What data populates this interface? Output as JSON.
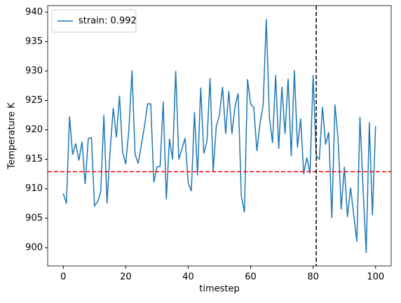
{
  "chart_data": {
    "type": "line",
    "xlabel": "timestep",
    "ylabel": "Temperature K",
    "x": [
      0,
      1,
      2,
      3,
      4,
      5,
      6,
      7,
      8,
      9,
      10,
      11,
      12,
      13,
      14,
      15,
      16,
      17,
      18,
      19,
      20,
      21,
      22,
      23,
      24,
      25,
      26,
      27,
      28,
      29,
      30,
      31,
      32,
      33,
      34,
      35,
      36,
      37,
      38,
      39,
      40,
      41,
      42,
      43,
      44,
      45,
      46,
      47,
      48,
      49,
      50,
      51,
      52,
      53,
      54,
      55,
      56,
      57,
      58,
      59,
      60,
      61,
      62,
      63,
      64,
      65,
      66,
      67,
      68,
      69,
      70,
      71,
      72,
      73,
      74,
      75,
      76,
      77,
      78,
      79,
      80,
      81,
      82,
      83,
      84,
      85,
      86,
      87,
      88,
      89,
      90,
      91,
      92,
      93,
      94,
      95,
      96,
      97,
      98,
      99,
      100
    ],
    "series": [
      {
        "name": "strain: 0.992",
        "color": "#1f77b4",
        "values": [
          909.2,
          907.5,
          922.3,
          915.8,
          917.7,
          914.8,
          918.0,
          910.8,
          918.5,
          918.7,
          907.1,
          907.8,
          909.5,
          922.5,
          907.5,
          916.5,
          923.7,
          918.7,
          925.8,
          916.2,
          914.2,
          920.0,
          930.1,
          915.8,
          914.3,
          917.5,
          920.6,
          924.4,
          924.4,
          911.1,
          913.7,
          913.8,
          924.8,
          908.2,
          918.5,
          915.0,
          930.0,
          915.0,
          916.8,
          918.6,
          911.0,
          909.6,
          923.0,
          912.3,
          927.2,
          916.0,
          918.0,
          928.8,
          913.0,
          920.6,
          922.5,
          927.3,
          919.3,
          926.6,
          919.3,
          924.0,
          926.2,
          908.8,
          906.0,
          928.6,
          924.4,
          923.8,
          916.4,
          921.2,
          924.2,
          938.8,
          922.2,
          917.8,
          929.3,
          916.8,
          927.3,
          919.3,
          928.7,
          915.5,
          930.1,
          917.0,
          921.9,
          912.5,
          915.3,
          912.6,
          929.3,
          915.6,
          915.0,
          923.9,
          917.5,
          919.6,
          905.0,
          924.3,
          918.4,
          906.5,
          913.7,
          905.2,
          910.2,
          905.6,
          901.0,
          922.2,
          909.9,
          899.1,
          921.3,
          905.5,
          920.6
        ]
      }
    ],
    "reference_lines": [
      {
        "axis": "y",
        "value": 912.9,
        "color": "#ff0000"
      },
      {
        "axis": "x",
        "value": 81,
        "color": "#000000"
      }
    ],
    "xlim": [
      -5,
      105
    ],
    "ylim": [
      896.9,
      941.1
    ],
    "xticks": [
      0,
      20,
      40,
      60,
      80,
      100
    ],
    "yticks": [
      900,
      905,
      910,
      915,
      920,
      925,
      930,
      935,
      940
    ],
    "legend": "upper left"
  }
}
